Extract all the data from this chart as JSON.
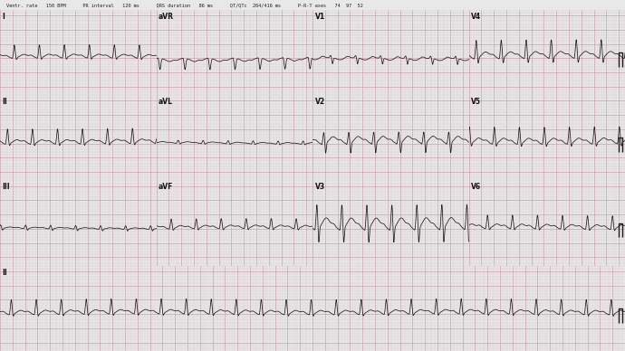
{
  "bg_color": "#e8e8e8",
  "grid_major_color": "#c8a0a8",
  "grid_minor_color": "#ddc8cc",
  "ecg_color": "#1a1a1a",
  "header_bg": "#d0d0d0",
  "heart_rate": 150,
  "figsize": [
    6.9,
    3.88
  ],
  "dpi": 100,
  "header_text": "Ventr. rate   150 BPM      PR interval   120 ms      QRS duration   86 ms      QT/QTc  264/416 ms      P-R-T axes   74  97  52",
  "lead_configs": [
    [
      "I",
      "normal",
      0,
      0,
      0.35
    ],
    [
      "aVR",
      "avr",
      0,
      1,
      0.35
    ],
    [
      "V1",
      "v1",
      0,
      2,
      0.35
    ],
    [
      "V4",
      "v4",
      0,
      3,
      0.45
    ],
    [
      "II",
      "normal",
      1,
      0,
      0.4
    ],
    [
      "aVL",
      "avl",
      1,
      1,
      0.25
    ],
    [
      "V2",
      "v2",
      1,
      2,
      0.55
    ],
    [
      "V5",
      "v5",
      1,
      3,
      0.45
    ],
    [
      "III",
      "iii",
      2,
      0,
      0.3
    ],
    [
      "aVF",
      "avf",
      2,
      1,
      0.38
    ],
    [
      "V3",
      "v3",
      2,
      2,
      0.7
    ],
    [
      "V6",
      "v6",
      2,
      3,
      0.42
    ]
  ],
  "rhythm_lead": "II",
  "rhythm_type": "normal",
  "rhythm_amp": 0.4
}
